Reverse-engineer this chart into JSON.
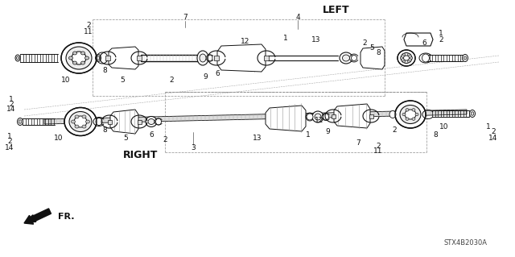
{
  "background_color": "#ffffff",
  "diagram_code": "STX4B2030A",
  "left_label": "LEFT",
  "right_label": "RIGHT",
  "fr_label": "FR.",
  "line_color": "#111111",
  "dark_color": "#222222",
  "gray_color": "#888888",
  "light_gray": "#cccccc",
  "font_size": 6.5,
  "bold_font_size": 8.5
}
